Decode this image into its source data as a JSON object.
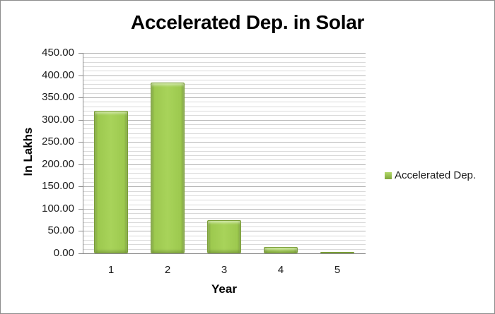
{
  "chart_data": {
    "type": "bar",
    "title": "Accelerated Dep. in Solar",
    "xlabel": "Year",
    "ylabel": "In Lakhs",
    "categories": [
      "1",
      "2",
      "3",
      "4",
      "5"
    ],
    "series": [
      {
        "name": "Accelerated Dep.",
        "values": [
          320,
          384,
          75,
          14,
          2
        ],
        "color": "#9dc94f"
      }
    ],
    "ylim": [
      0,
      450
    ],
    "yticks": [
      "0.00",
      "50.00",
      "100.00",
      "150.00",
      "200.00",
      "250.00",
      "300.00",
      "350.00",
      "400.00",
      "450.00"
    ],
    "grid": true,
    "legend_position": "right"
  }
}
